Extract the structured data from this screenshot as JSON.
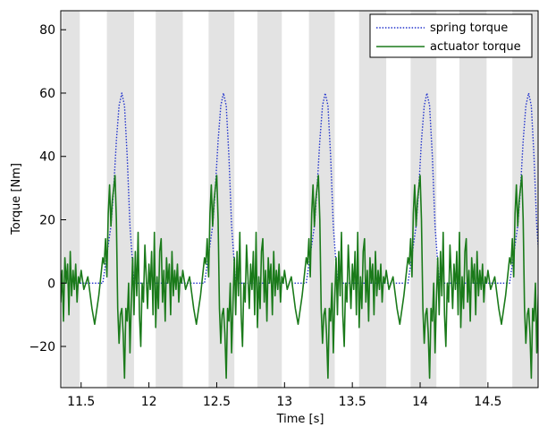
{
  "chart_data": {
    "type": "line",
    "title": "",
    "xlabel": "Time [s]",
    "ylabel": "Torque [Nm]",
    "xlim": [
      11.35,
      14.87
    ],
    "ylim": [
      -33,
      86
    ],
    "xticks": [
      11.5,
      12,
      12.5,
      13,
      13.5,
      14,
      14.5
    ],
    "xtick_labels": [
      "11.5",
      "12",
      "12.5",
      "13",
      "13.5",
      "14",
      "14.5"
    ],
    "yticks": [
      -20,
      0,
      20,
      40,
      60,
      80
    ],
    "ytick_labels": [
      "−20",
      "0",
      "20",
      "40",
      "60",
      "80"
    ],
    "grid": false,
    "legend_position": "top-right",
    "shaded_color": "#e3e3e3",
    "shaded_intervals": [
      [
        11.36,
        11.49
      ],
      [
        11.69,
        11.89
      ],
      [
        12.05,
        12.25
      ],
      [
        12.44,
        12.63
      ],
      [
        12.8,
        12.98
      ],
      [
        13.18,
        13.37
      ],
      [
        13.55,
        13.75
      ],
      [
        13.93,
        14.12
      ],
      [
        14.29,
        14.49
      ],
      [
        14.68,
        14.87
      ]
    ],
    "period": 0.75,
    "series": [
      {
        "name": "spring torque",
        "color": "#2233cc",
        "style": "dotted",
        "cycle_t0": 11.5,
        "cycle_offsets": [
          0,
          0.04,
          0.16,
          0.22,
          0.24,
          0.26,
          0.28,
          0.3,
          0.32,
          0.34,
          0.36,
          0.39,
          0.75
        ],
        "cycle_values": [
          0,
          0,
          0,
          18,
          30,
          45,
          56,
          60,
          56,
          40,
          18,
          0,
          0
        ]
      },
      {
        "name": "actuator torque",
        "color": "#1a7a1a",
        "style": "solid",
        "cycle_t0": 11.5,
        "cycle_offsets": [
          0,
          0.02,
          0.05,
          0.08,
          0.1,
          0.13,
          0.16,
          0.17,
          0.18,
          0.19,
          0.2,
          0.21,
          0.22,
          0.23,
          0.24,
          0.25,
          0.26,
          0.27,
          0.28,
          0.29,
          0.3,
          0.31,
          0.32,
          0.33,
          0.34,
          0.35,
          0.36,
          0.37,
          0.38,
          0.39,
          0.4,
          0.41,
          0.42,
          0.43,
          0.44,
          0.45,
          0.46,
          0.47,
          0.48,
          0.49,
          0.5,
          0.51,
          0.52,
          0.53,
          0.54,
          0.55,
          0.56,
          0.57,
          0.58,
          0.59,
          0.6,
          0.61,
          0.62,
          0.63,
          0.64,
          0.65,
          0.66,
          0.67,
          0.68,
          0.69,
          0.7,
          0.71,
          0.72,
          0.73,
          0.74,
          0.75
        ],
        "cycle_values": [
          4,
          -2,
          2,
          -8,
          -13,
          -4,
          8,
          6,
          14,
          2,
          22,
          31,
          18,
          26,
          30,
          34,
          20,
          -8,
          -19,
          -10,
          -8,
          -16,
          -30,
          -8,
          -12,
          0,
          -22,
          -6,
          8,
          -10,
          10,
          -4,
          16,
          -10,
          -20,
          0,
          -6,
          12,
          2,
          -8,
          6,
          -2,
          10,
          -10,
          16,
          -14,
          2,
          -8,
          10,
          14,
          -6,
          4,
          -12,
          8,
          0,
          6,
          -10,
          10,
          -4,
          4,
          -2,
          6,
          -6,
          2,
          0,
          4
        ]
      }
    ]
  }
}
